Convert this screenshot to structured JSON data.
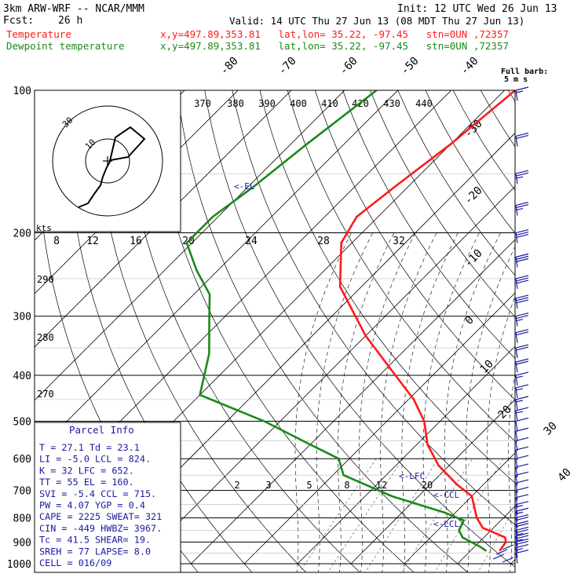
{
  "header": {
    "model": "3km ARW-WRF -- NCAR/MMM",
    "init": "Init: 12 UTC Wed 26 Jun 13",
    "fcst_label": "Fcst:",
    "fcst_value": "26 h",
    "valid": "Valid: 14 UTC Thu 27 Jun 13 (08 MDT Thu 27 Jun 13)",
    "temp_legend": "Temperature",
    "dewp_legend": "Dewpoint temperature",
    "temp_info": "x,y=497.89,353.81   lat,lon= 35.22, -97.45   stn=0UN ,72357",
    "dewp_info": "x,y=497.89,353.81   lat,lon= 35.22, -97.45   stn=0UN ,72357"
  },
  "colors": {
    "temperature": "#ff1a1a",
    "dewpoint": "#1a8a1a",
    "parcel_text": "#1a1aa0",
    "wind": "#1a1aa0",
    "grid": "#000000",
    "mixing": "#666666"
  },
  "wind_legend": {
    "line1": "Full barb:",
    "line2": "5 m s"
  },
  "annotations": {
    "el": "<-EL",
    "lfc": "<-LFC",
    "ccl": "<-CCL",
    "lcl": "<-LCL",
    "kts": "kts"
  },
  "parcel_info": {
    "title": "Parcel Info",
    "rows": [
      "T  =   27.1  Td =  23.1",
      "LI =   -5.0  LCL =  824.",
      "K  =     32  LFC =  652.",
      "TT =     55  EL  =  160.",
      "SVI =  -5.4  CCL =  715.",
      "PW =   4.07  YGP =   0.4",
      "CAPE =  2225  SWEAT=  321",
      "CIN =  -449  HWBZ= 3967.",
      "Tc =   41.5  SHEAR=  19.",
      "SREH =    77  LAPSE=  8.0",
      "CELL = 016/09"
    ]
  },
  "chart_data": {
    "type": "line",
    "title": "",
    "ylabel": "",
    "xlabel": "",
    "pressure_levels": [
      100,
      200,
      300,
      400,
      500,
      600,
      700,
      800,
      900,
      1000
    ],
    "pressure_tick_labels": [
      "100",
      "200",
      "300",
      "400",
      "500",
      "600",
      "700",
      "800",
      "900",
      "1000"
    ],
    "y_scale": "log",
    "temperature_tick_labels": [
      "-80",
      "-70",
      "-60",
      "-50",
      "-40",
      "-30",
      "-20",
      "-10",
      "0",
      "10",
      "20",
      "30",
      "40"
    ],
    "theta_labels": [
      "370",
      "380",
      "390",
      "400",
      "410",
      "420",
      "430",
      "440"
    ],
    "theta_left_labels": [
      "290",
      "280",
      "270"
    ],
    "mixing_ratio_labels": [
      "2",
      "3",
      "5",
      "8",
      "12",
      "20"
    ],
    "hodograph_speed_labels": [
      "8",
      "12",
      "16",
      "20",
      "24",
      "28",
      "32"
    ],
    "hodograph_ring_labels": [
      "10",
      "30"
    ],
    "series": [
      {
        "name": "Temperature",
        "pressure": [
          100,
          130,
          160,
          185,
          210,
          260,
          330,
          400,
          450,
          500,
          560,
          620,
          680,
          720,
          800,
          840,
          880,
          900,
          940
        ],
        "temperature": [
          -58,
          -60,
          -62.5,
          -64,
          -62,
          -54,
          -40,
          -27,
          -19,
          -13,
          -8,
          -2,
          5,
          10,
          15,
          18,
          24,
          25,
          25.5
        ]
      },
      {
        "name": "Dewpoint temperature",
        "pressure": [
          100,
          130,
          160,
          185,
          210,
          240,
          270,
          300,
          360,
          440,
          500,
          560,
          600,
          650,
          720,
          780,
          810,
          850,
          880,
          920,
          940
        ],
        "dewpoint": [
          -84,
          -87,
          -89,
          -91,
          -91,
          -84,
          -77,
          -73,
          -66,
          -60,
          -43,
          -30,
          -22,
          -18,
          -5,
          8,
          13,
          14,
          16,
          21,
          23
        ]
      }
    ],
    "wind_barbs": {
      "pressure": [
        100,
        125,
        150,
        175,
        200,
        225,
        250,
        275,
        300,
        325,
        350,
        375,
        400,
        425,
        450,
        475,
        500,
        525,
        550,
        575,
        600,
        625,
        650,
        675,
        700,
        725,
        750,
        775,
        800,
        825,
        850,
        875,
        900,
        925,
        950
      ],
      "speed_kt": [
        15,
        20,
        25,
        25,
        30,
        30,
        30,
        30,
        25,
        20,
        20,
        20,
        15,
        15,
        15,
        15,
        10,
        10,
        10,
        10,
        10,
        10,
        10,
        10,
        10,
        10,
        15,
        15,
        20,
        20,
        25,
        25,
        20,
        15,
        10
      ]
    },
    "grid": true,
    "legend": "top-left"
  }
}
